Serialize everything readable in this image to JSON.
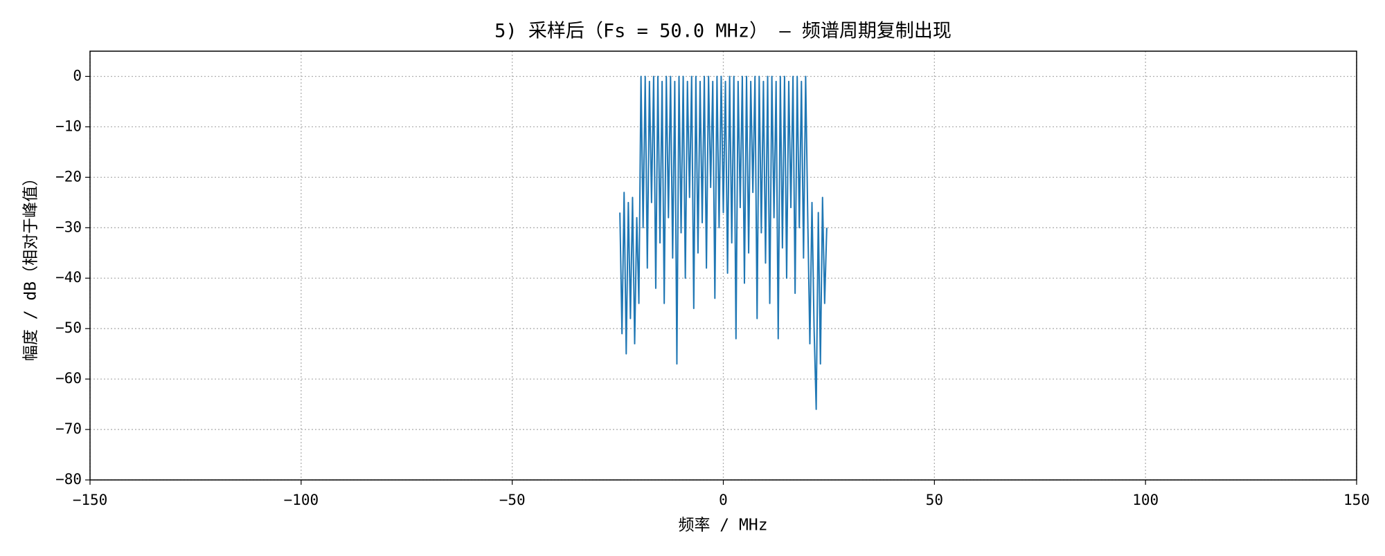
{
  "chart_data": {
    "type": "line",
    "title": "5) 采样后（Fs = 50.0 MHz） — 频谱周期复制出现",
    "xlabel": "频率 / MHz",
    "ylabel": "幅度 / dB（相对于峰值）",
    "color": "#1f77b4",
    "grid": true,
    "xlim": [
      -150,
      150
    ],
    "ylim": [
      -80,
      5
    ],
    "xticks": [
      {
        "value": -150,
        "label": "−150"
      },
      {
        "value": -100,
        "label": "−100"
      },
      {
        "value": -50,
        "label": "−50"
      },
      0,
      50,
      100,
      150
    ],
    "yticks": [
      0,
      {
        "value": -10,
        "label": "−10"
      },
      {
        "value": -20,
        "label": "−20"
      },
      {
        "value": -30,
        "label": "−30"
      },
      {
        "value": -40,
        "label": "−40"
      },
      {
        "value": -50,
        "label": "−50"
      },
      {
        "value": -60,
        "label": "−60"
      },
      {
        "value": -70,
        "label": "−70"
      },
      {
        "value": -80,
        "label": "−80"
      }
    ],
    "x": [
      -24.5,
      -24,
      -23.5,
      -23,
      -22.5,
      -22,
      -21.5,
      -21,
      -20.5,
      -20,
      -19.5,
      -19,
      -18.5,
      -18,
      -17.5,
      -17,
      -16.5,
      -16,
      -15.5,
      -15,
      -14.5,
      -14,
      -13.5,
      -13,
      -12.5,
      -12,
      -11.5,
      -11,
      -10.5,
      -10,
      -9.5,
      -9,
      -8.5,
      -8,
      -7.5,
      -7,
      -6.5,
      -6,
      -5.5,
      -5,
      -4.5,
      -4,
      -3.5,
      -3,
      -2.5,
      -2,
      -1.5,
      -1,
      -0.5,
      0,
      0.5,
      1,
      1.5,
      2,
      2.5,
      3,
      3.5,
      4,
      4.5,
      5,
      5.5,
      6,
      6.5,
      7,
      7.5,
      8,
      8.5,
      9,
      9.5,
      10,
      10.5,
      11,
      11.5,
      12,
      12.5,
      13,
      13.5,
      14,
      14.5,
      15,
      15.5,
      16,
      16.5,
      17,
      17.5,
      18,
      18.5,
      19,
      19.5,
      20,
      20.5,
      21,
      21.5,
      22,
      22.5,
      23,
      23.5,
      24,
      24.5
    ],
    "values": [
      -27,
      -51,
      -23,
      -55,
      -25,
      -48,
      -24,
      -53,
      -28,
      -45,
      0,
      -30,
      0,
      -38,
      -1,
      -25,
      0,
      -42,
      0,
      -33,
      -1,
      -45,
      0,
      -28,
      0,
      -36,
      -1,
      -57,
      0,
      -31,
      0,
      -40,
      -1,
      -24,
      0,
      -46,
      0,
      -35,
      -1,
      -29,
      0,
      -38,
      0,
      -22,
      -1,
      -44,
      0,
      -30,
      0,
      -27,
      -1,
      -39,
      0,
      -33,
      0,
      -52,
      -1,
      -26,
      0,
      -41,
      0,
      -35,
      -1,
      -23,
      0,
      -48,
      0,
      -31,
      -1,
      -37,
      0,
      -45,
      0,
      -28,
      -1,
      -52,
      0,
      -34,
      0,
      -40,
      -1,
      -26,
      0,
      -43,
      0,
      -30,
      -1,
      -36,
      0,
      -28,
      -53,
      -25,
      -50,
      -66,
      -27,
      -57,
      -24,
      -45,
      -30
    ]
  }
}
